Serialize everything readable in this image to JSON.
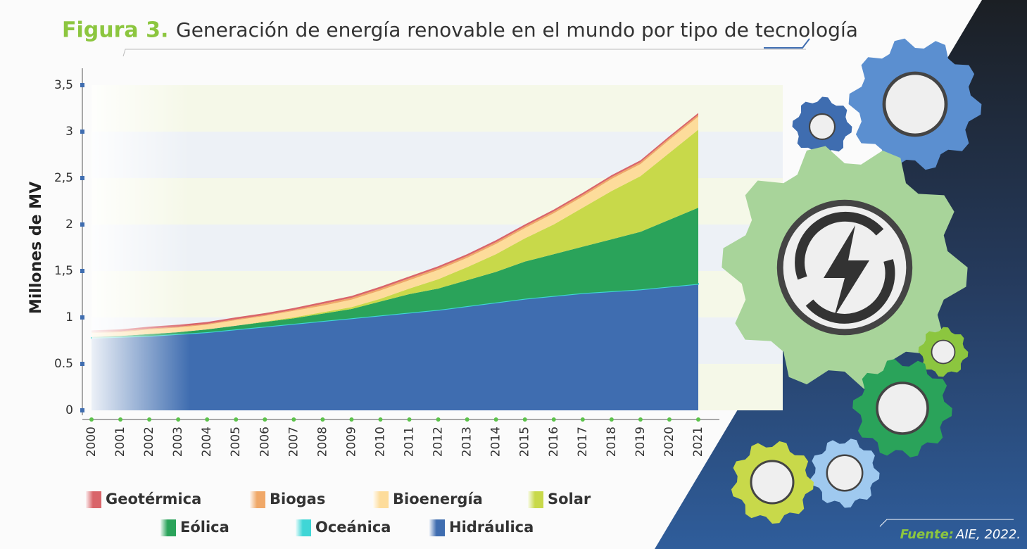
{
  "chart_data": {
    "type": "stacked_area",
    "figure_label": "Figura 3.",
    "title": "Generación de energía renovable en el mundo por tipo de tecnología",
    "y_label": "Millones de MV",
    "source_label": "Fuente:",
    "source": "AIE, 2022.",
    "x": [
      2000,
      2001,
      2002,
      2003,
      2004,
      2005,
      2006,
      2007,
      2008,
      2009,
      2010,
      2011,
      2012,
      2013,
      2014,
      2015,
      2016,
      2017,
      2018,
      2019,
      2020,
      2021
    ],
    "xlim": [
      2000,
      2021
    ],
    "ylim": [
      0,
      3.5
    ],
    "yticks": [
      0,
      0.5,
      1,
      {
        "value": 1.5,
        "label": "1,5"
      },
      2,
      {
        "value": 2.5,
        "label": "2,5"
      },
      3,
      {
        "value": 3.5,
        "label": "3,5"
      }
    ],
    "series": [
      {
        "name": "Hidráulica",
        "color": "#3f6db0",
        "values": [
          0.78,
          0.79,
          0.8,
          0.82,
          0.84,
          0.87,
          0.9,
          0.93,
          0.96,
          0.99,
          1.02,
          1.05,
          1.08,
          1.12,
          1.16,
          1.2,
          1.23,
          1.26,
          1.28,
          1.3,
          1.33,
          1.36
        ]
      },
      {
        "name": "Oceánica",
        "color": "#3fd6d6",
        "values": [
          0.001,
          0.001,
          0.001,
          0.001,
          0.001,
          0.001,
          0.001,
          0.001,
          0.001,
          0.001,
          0.001,
          0.001,
          0.001,
          0.001,
          0.001,
          0.001,
          0.001,
          0.001,
          0.001,
          0.001,
          0.001,
          0.001
        ]
      },
      {
        "name": "Eólica",
        "color": "#2aa35a",
        "values": [
          0.01,
          0.01,
          0.02,
          0.02,
          0.03,
          0.04,
          0.05,
          0.06,
          0.08,
          0.1,
          0.15,
          0.2,
          0.23,
          0.28,
          0.33,
          0.4,
          0.45,
          0.5,
          0.56,
          0.62,
          0.72,
          0.82
        ]
      },
      {
        "name": "Solar",
        "color": "#c8d94a",
        "values": [
          0,
          0,
          0,
          0,
          0,
          0,
          0.005,
          0.01,
          0.015,
          0.02,
          0.03,
          0.06,
          0.1,
          0.14,
          0.19,
          0.25,
          0.32,
          0.42,
          0.52,
          0.6,
          0.72,
          0.84
        ]
      },
      {
        "name": "Bioenergía",
        "color": "#fddc9b",
        "values": [
          0.04,
          0.04,
          0.05,
          0.05,
          0.05,
          0.06,
          0.06,
          0.07,
          0.07,
          0.08,
          0.09,
          0.09,
          0.1,
          0.1,
          0.11,
          0.11,
          0.12,
          0.12,
          0.13,
          0.13,
          0.14,
          0.14
        ]
      },
      {
        "name": "Biogas",
        "color": "#f0a868",
        "values": [
          0.01,
          0.01,
          0.01,
          0.01,
          0.01,
          0.01,
          0.01,
          0.01,
          0.02,
          0.02,
          0.02,
          0.02,
          0.02,
          0.02,
          0.02,
          0.02,
          0.02,
          0.02,
          0.02,
          0.02,
          0.02,
          0.02
        ]
      },
      {
        "name": "Geotérmica",
        "color": "#d9656a",
        "values": [
          0.02,
          0.02,
          0.02,
          0.02,
          0.02,
          0.02,
          0.02,
          0.02,
          0.02,
          0.02,
          0.02,
          0.02,
          0.02,
          0.02,
          0.02,
          0.02,
          0.02,
          0.02,
          0.02,
          0.02,
          0.02,
          0.02
        ]
      }
    ],
    "legend_order": [
      6,
      5,
      4,
      3,
      2,
      1,
      0
    ]
  }
}
